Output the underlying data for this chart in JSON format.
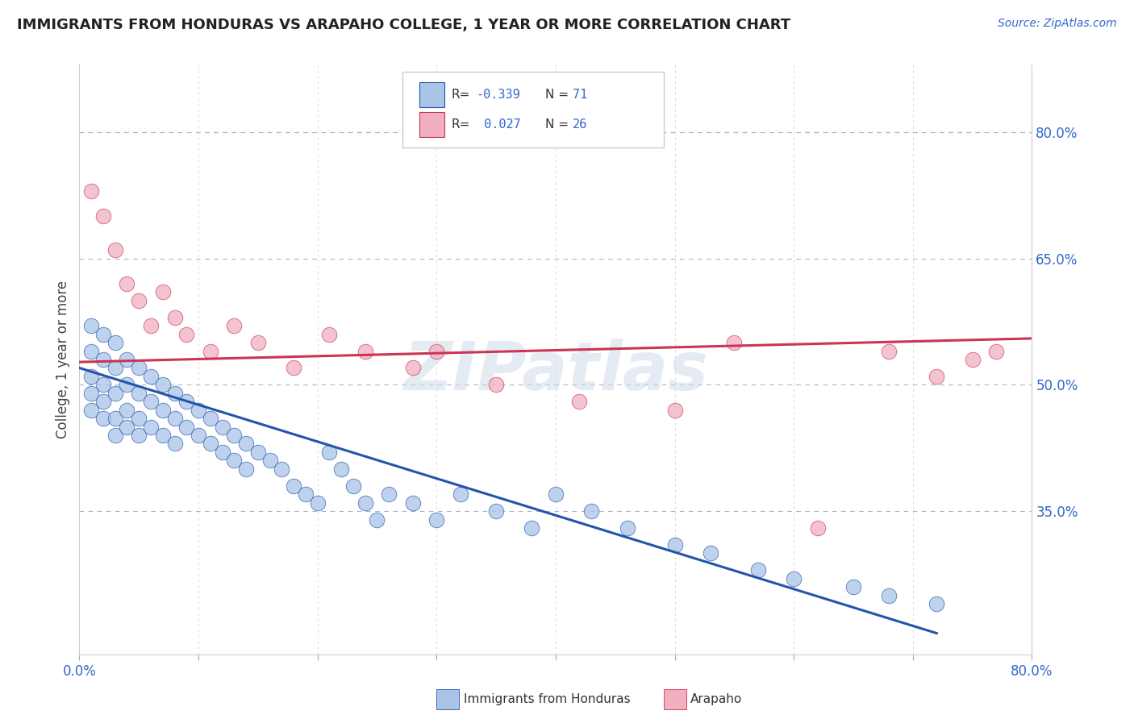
{
  "title": "IMMIGRANTS FROM HONDURAS VS ARAPAHO COLLEGE, 1 YEAR OR MORE CORRELATION CHART",
  "source_text": "Source: ZipAtlas.com",
  "ylabel": "College, 1 year or more",
  "xlim": [
    0.0,
    0.8
  ],
  "ylim": [
    0.18,
    0.88
  ],
  "xticks": [
    0.0,
    0.1,
    0.2,
    0.3,
    0.4,
    0.5,
    0.6,
    0.7,
    0.8
  ],
  "xticklabels": [
    "0.0%",
    "",
    "",
    "",
    "",
    "",
    "",
    "",
    "80.0%"
  ],
  "ytick_right_positions": [
    0.35,
    0.5,
    0.65,
    0.8
  ],
  "ytick_right_labels": [
    "35.0%",
    "50.0%",
    "65.0%",
    "80.0%"
  ],
  "blue_color": "#aac4e8",
  "pink_color": "#f0b0c0",
  "blue_line_color": "#2255aa",
  "pink_line_color": "#cc3355",
  "watermark": "ZIPatlas",
  "blue_scatter_x": [
    0.01,
    0.01,
    0.01,
    0.01,
    0.01,
    0.02,
    0.02,
    0.02,
    0.02,
    0.02,
    0.03,
    0.03,
    0.03,
    0.03,
    0.03,
    0.04,
    0.04,
    0.04,
    0.04,
    0.05,
    0.05,
    0.05,
    0.05,
    0.06,
    0.06,
    0.06,
    0.07,
    0.07,
    0.07,
    0.08,
    0.08,
    0.08,
    0.09,
    0.09,
    0.1,
    0.1,
    0.11,
    0.11,
    0.12,
    0.12,
    0.13,
    0.13,
    0.14,
    0.14,
    0.15,
    0.16,
    0.17,
    0.18,
    0.19,
    0.2,
    0.21,
    0.22,
    0.23,
    0.24,
    0.25,
    0.26,
    0.28,
    0.3,
    0.32,
    0.35,
    0.38,
    0.4,
    0.43,
    0.46,
    0.5,
    0.53,
    0.57,
    0.6,
    0.65,
    0.68,
    0.72
  ],
  "blue_scatter_y": [
    0.57,
    0.54,
    0.51,
    0.49,
    0.47,
    0.56,
    0.53,
    0.5,
    0.48,
    0.46,
    0.55,
    0.52,
    0.49,
    0.46,
    0.44,
    0.53,
    0.5,
    0.47,
    0.45,
    0.52,
    0.49,
    0.46,
    0.44,
    0.51,
    0.48,
    0.45,
    0.5,
    0.47,
    0.44,
    0.49,
    0.46,
    0.43,
    0.48,
    0.45,
    0.47,
    0.44,
    0.46,
    0.43,
    0.45,
    0.42,
    0.44,
    0.41,
    0.43,
    0.4,
    0.42,
    0.41,
    0.4,
    0.38,
    0.37,
    0.36,
    0.42,
    0.4,
    0.38,
    0.36,
    0.34,
    0.37,
    0.36,
    0.34,
    0.37,
    0.35,
    0.33,
    0.37,
    0.35,
    0.33,
    0.31,
    0.3,
    0.28,
    0.27,
    0.26,
    0.25,
    0.24
  ],
  "pink_scatter_x": [
    0.01,
    0.02,
    0.03,
    0.04,
    0.05,
    0.06,
    0.07,
    0.08,
    0.09,
    0.11,
    0.13,
    0.15,
    0.18,
    0.21,
    0.24,
    0.28,
    0.3,
    0.35,
    0.42,
    0.5,
    0.55,
    0.62,
    0.68,
    0.72,
    0.75,
    0.77
  ],
  "pink_scatter_y": [
    0.73,
    0.7,
    0.66,
    0.62,
    0.6,
    0.57,
    0.61,
    0.58,
    0.56,
    0.54,
    0.57,
    0.55,
    0.52,
    0.56,
    0.54,
    0.52,
    0.54,
    0.5,
    0.48,
    0.47,
    0.55,
    0.33,
    0.54,
    0.51,
    0.53,
    0.54
  ],
  "blue_line_x0": 0.0,
  "blue_line_x1": 0.72,
  "blue_line_y0": 0.52,
  "blue_line_y1": 0.205,
  "pink_line_x0": 0.0,
  "pink_line_x1": 0.8,
  "pink_line_y0": 0.527,
  "pink_line_y1": 0.555
}
